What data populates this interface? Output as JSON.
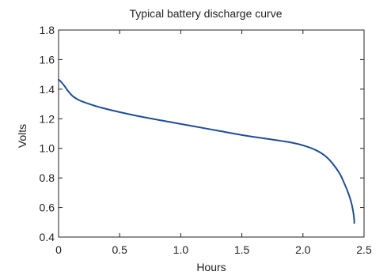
{
  "chart_data": {
    "type": "line",
    "title": "Typical battery discharge curve",
    "xlabel": "Hours",
    "ylabel": "Volts",
    "xlim": [
      0,
      2.5
    ],
    "ylim": [
      0.4,
      1.8
    ],
    "xticks": [
      0,
      0.5,
      1.0,
      1.5,
      2.0,
      2.5
    ],
    "xtick_labels": [
      "0",
      "0.5",
      "1.0",
      "1.5",
      "2.0",
      "2.5"
    ],
    "yticks": [
      0.4,
      0.6,
      0.8,
      1.0,
      1.2,
      1.4,
      1.6,
      1.8
    ],
    "ytick_labels": [
      "0.4",
      "0.6",
      "0.8",
      "1.0",
      "1.2",
      "1.4",
      "1.6",
      "1.8"
    ],
    "grid": false,
    "series": [
      {
        "color": "#1f4e96",
        "x": [
          0,
          0.02,
          0.05,
          0.08,
          0.12,
          0.17,
          0.25,
          0.35,
          0.5,
          0.7,
          0.9,
          1.1,
          1.3,
          1.5,
          1.7,
          1.9,
          2.0,
          2.1,
          2.18,
          2.24,
          2.3,
          2.34,
          2.37,
          2.39,
          2.405,
          2.415,
          2.42,
          2.42
        ],
        "y": [
          1.465,
          1.45,
          1.42,
          1.385,
          1.35,
          1.325,
          1.3,
          1.275,
          1.245,
          1.21,
          1.18,
          1.15,
          1.12,
          1.09,
          1.065,
          1.04,
          1.02,
          0.99,
          0.95,
          0.9,
          0.83,
          0.76,
          0.7,
          0.65,
          0.6,
          0.55,
          0.51,
          0.495
        ]
      }
    ]
  }
}
